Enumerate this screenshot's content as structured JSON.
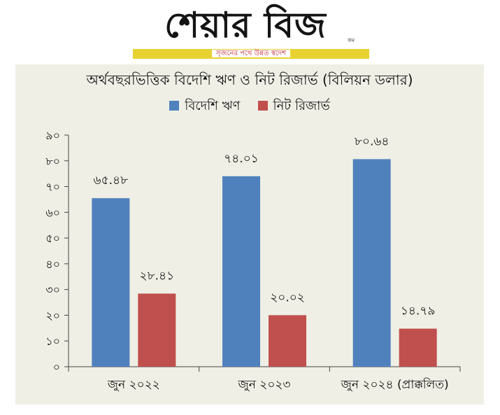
{
  "masthead": {
    "logo_text": "শেয়ার বিজ",
    "logo_suffix": "কম",
    "tagline": "সৃজনের পথে উন্নত স্বদেশ"
  },
  "colors": {
    "series_blue": "#4f81bd",
    "series_red": "#c0504d",
    "panel_bg": "#efefe6",
    "tagline_bar": "#e8d232",
    "tagline_text": "#c0272d"
  },
  "chart_data": {
    "type": "bar",
    "title": "অর্থবছরভিত্তিক বিদেশি ঋণ ও নিট রিজার্ভ (বিলিয়ন ডলার)",
    "categories": [
      "জুন ২০২২",
      "জুন ২০২৩",
      "জুন ২০২৪ (প্রাক্কলিত)"
    ],
    "series": [
      {
        "name": "বিদেশি ঋণ",
        "values": [
          65.48,
          74.01,
          80.64
        ],
        "labels": [
          "৬৫.৪৮",
          "৭৪.০১",
          "৮০.৬৪"
        ],
        "color": "#4f81bd"
      },
      {
        "name": "নিট রিজার্ভ",
        "values": [
          28.41,
          20.02,
          14.79
        ],
        "labels": [
          "২৮.৪১",
          "২০.০২",
          "১৪.৭৯"
        ],
        "color": "#c0504d"
      }
    ],
    "ylim": [
      0,
      90
    ],
    "yticks": [
      0,
      10,
      20,
      30,
      40,
      50,
      60,
      70,
      80,
      90
    ],
    "ytick_labels": [
      "০",
      "১০",
      "২০",
      "৩০",
      "৪০",
      "৫০",
      "৬০",
      "৭০",
      "৮০",
      "৯০"
    ],
    "xlabel": "",
    "ylabel": "",
    "grid": false,
    "legend_position": "top"
  }
}
